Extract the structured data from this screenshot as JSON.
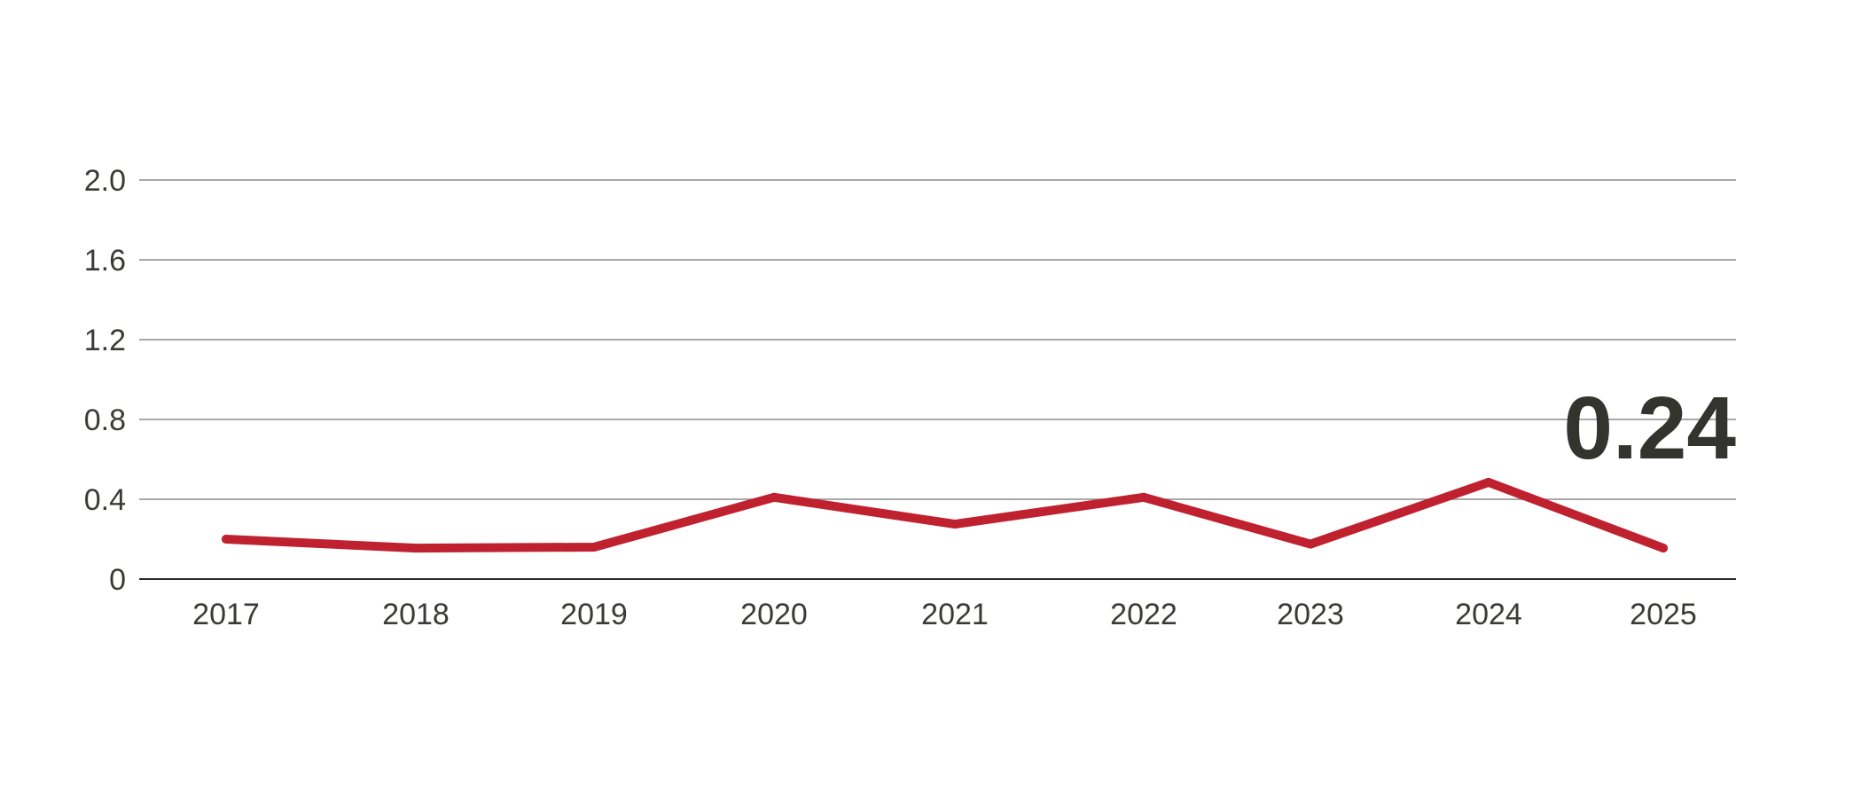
{
  "chart_data": {
    "type": "line",
    "categories": [
      "2017",
      "2018",
      "2019",
      "2020",
      "2021",
      "2022",
      "2023",
      "2024",
      "2025"
    ],
    "series": [
      {
        "values": [
          0.2,
          0.155,
          0.16,
          0.41,
          0.275,
          0.41,
          0.175,
          0.485,
          0.155
        ]
      }
    ],
    "ylim": [
      0,
      2.0
    ],
    "yticks": [
      0,
      0.4,
      0.8,
      1.2,
      1.6,
      2.0
    ],
    "ytick_labels": [
      "0",
      "0.4",
      "0.8",
      "1.2",
      "1.6",
      "2.0"
    ],
    "grid": "horizontal",
    "callout": "0.24",
    "colors": {
      "line": "#c0212f",
      "text": "#3a3a36",
      "callout": "#34342e",
      "grid": "#8c8c8c"
    }
  }
}
